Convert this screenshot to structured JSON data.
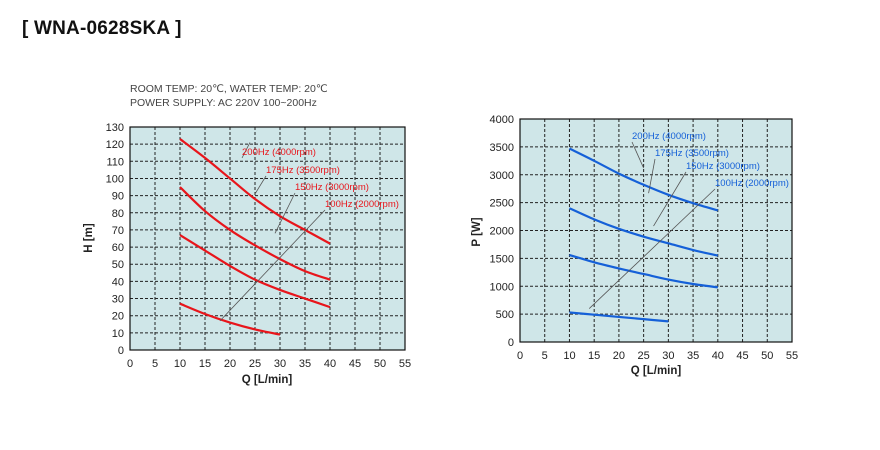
{
  "title": "[ WNA-0628SKA ]",
  "conditions": [
    "ROOM TEMP: 20℃, WATER TEMP: 20℃",
    "POWER SUPPLY: AC 220V 100~200Hz"
  ],
  "colors": {
    "plot_bg": "#cfe6e8",
    "head_curves": "#e8151b",
    "power_curves": "#1560d8",
    "grid": "#222222"
  },
  "chart_data": [
    {
      "type": "line",
      "xlabel": "Q [L/min]",
      "ylabel": "H [m]",
      "xlim": [
        0,
        55
      ],
      "ylim": [
        0,
        130
      ],
      "xticks": [
        0,
        5,
        10,
        15,
        20,
        25,
        30,
        35,
        40,
        45,
        50,
        55
      ],
      "yticks": [
        0,
        10,
        20,
        30,
        40,
        50,
        60,
        70,
        80,
        90,
        100,
        110,
        120,
        130
      ],
      "grid": true,
      "series": [
        {
          "name": "200Hz (4000rpm)",
          "x": [
            10,
            15,
            20,
            25,
            30,
            35,
            40
          ],
          "y": [
            123,
            112,
            100,
            88,
            78,
            70,
            62
          ]
        },
        {
          "name": "175Hz (3500rpm)",
          "x": [
            10,
            15,
            20,
            25,
            30,
            35,
            40
          ],
          "y": [
            95,
            81,
            70,
            61,
            53,
            46,
            41
          ]
        },
        {
          "name": "150Hz (3000rpm)",
          "x": [
            10,
            15,
            20,
            25,
            30,
            35,
            40
          ],
          "y": [
            67,
            58,
            49,
            41,
            35,
            30,
            25
          ]
        },
        {
          "name": "100Hz (2000rpm)",
          "x": [
            10,
            15,
            20,
            25,
            30
          ],
          "y": [
            27,
            21,
            16,
            12,
            9
          ]
        }
      ]
    },
    {
      "type": "line",
      "xlabel": "Q [L/min]",
      "ylabel": "P [W]",
      "xlim": [
        0,
        55
      ],
      "ylim": [
        0,
        4000
      ],
      "xticks": [
        0,
        5,
        10,
        15,
        20,
        25,
        30,
        35,
        40,
        45,
        50,
        55
      ],
      "yticks": [
        0,
        500,
        1000,
        1500,
        2000,
        2500,
        3000,
        3500,
        4000
      ],
      "grid": true,
      "series": [
        {
          "name": "200Hz (4000rpm)",
          "x": [
            10,
            15,
            20,
            25,
            30,
            35,
            40
          ],
          "y": [
            3470,
            3250,
            3020,
            2820,
            2640,
            2490,
            2360
          ]
        },
        {
          "name": "175Hz (3500rpm)",
          "x": [
            10,
            15,
            20,
            25,
            30,
            35,
            40
          ],
          "y": [
            2400,
            2200,
            2030,
            1890,
            1770,
            1650,
            1550
          ]
        },
        {
          "name": "150Hz (3000rpm)",
          "x": [
            10,
            15,
            20,
            25,
            30,
            35,
            40
          ],
          "y": [
            1560,
            1430,
            1320,
            1220,
            1120,
            1040,
            980
          ]
        },
        {
          "name": "100Hz (2000rpm)",
          "x": [
            10,
            15,
            20,
            25,
            30
          ],
          "y": [
            530,
            490,
            450,
            410,
            370
          ]
        }
      ]
    }
  ]
}
